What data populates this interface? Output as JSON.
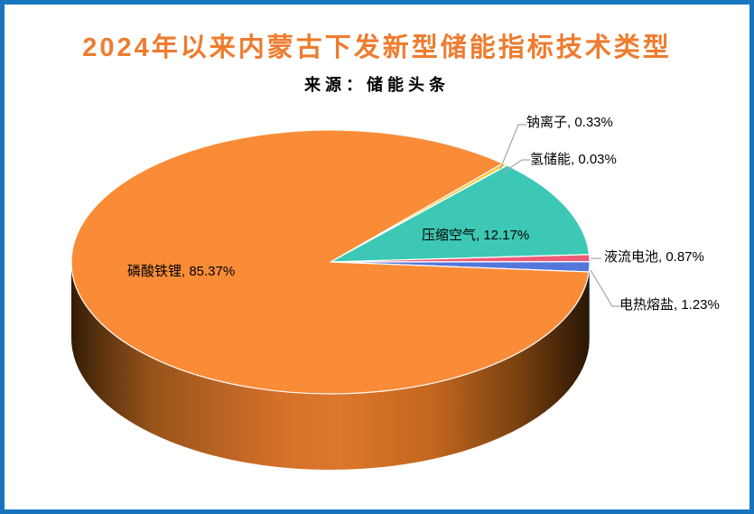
{
  "page": {
    "background": "#FFFFFF",
    "border_color": "#1874BC"
  },
  "header": {
    "title": "2024年以来内蒙古下发新型储能指标技术类型",
    "title_color": "#EE7C2E",
    "subtitle": "来源：储能头条"
  },
  "chart_data": {
    "type": "pie",
    "style": "3d",
    "title": "2024年以来内蒙古下发新型储能指标技术类型",
    "source": "来源：储能头条",
    "legend": "none",
    "unit": "%",
    "start_angle_deg": 48.35,
    "clockwise": true,
    "leader_line_color": "#A6A6A6",
    "slices": [
      {
        "name": "钠离子",
        "value": 0.33,
        "color": "#FFC524",
        "label": "钠离子, 0.33%"
      },
      {
        "name": "氢储能",
        "value": 0.03,
        "color": "#DCDCDC",
        "label": "氢储能, 0.03%"
      },
      {
        "name": "压缩空气",
        "value": 12.17,
        "color": "#3CC8B4",
        "label": "压缩空气, 12.17%"
      },
      {
        "name": "液流电池",
        "value": 0.87,
        "color": "#EF5A75",
        "label": "液流电池, 0.87%"
      },
      {
        "name": "电热熔盐",
        "value": 1.23,
        "color": "#5377DB",
        "label": "电热熔盐, 1.23%"
      },
      {
        "name": "磷酸铁锂",
        "value": 85.37,
        "color": "#FA8C38",
        "label": "磷酸铁锂, 85.37%"
      }
    ]
  }
}
